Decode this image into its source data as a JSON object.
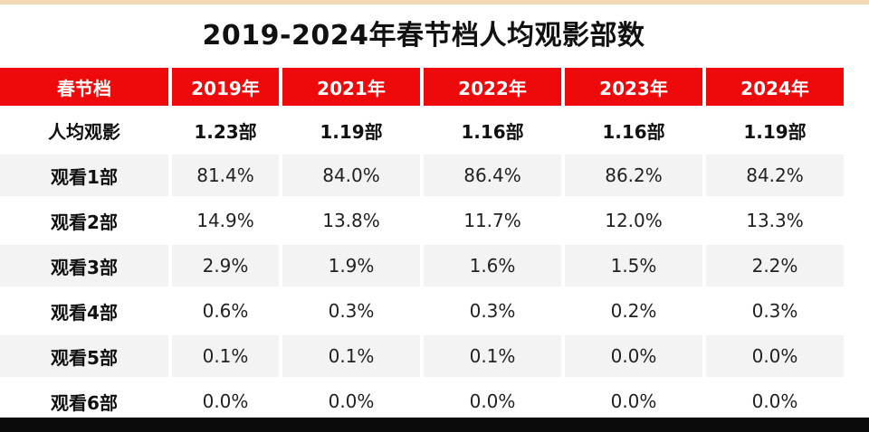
{
  "title": "2019-2024年春节档人均观影部数",
  "chart_data": {
    "type": "table",
    "title": "2019-2024年春节档人均观影部数",
    "columns": [
      "春节档",
      "2019年",
      "2021年",
      "2022年",
      "2023年",
      "2024年"
    ],
    "rows": [
      {
        "label": "人均观影",
        "values": [
          "1.23部",
          "1.19部",
          "1.16部",
          "1.16部",
          "1.19部"
        ]
      },
      {
        "label": "观看1部",
        "values": [
          "81.4%",
          "84.0%",
          "86.4%",
          "86.2%",
          "84.2%"
        ]
      },
      {
        "label": "观看2部",
        "values": [
          "14.9%",
          "13.8%",
          "11.7%",
          "12.0%",
          "13.3%"
        ]
      },
      {
        "label": "观看3部",
        "values": [
          "2.9%",
          "1.9%",
          "1.6%",
          "1.5%",
          "2.2%"
        ]
      },
      {
        "label": "观看4部",
        "values": [
          "0.6%",
          "0.3%",
          "0.3%",
          "0.2%",
          "0.3%"
        ]
      },
      {
        "label": "观看5部",
        "values": [
          "0.1%",
          "0.1%",
          "0.1%",
          "0.0%",
          "0.0%"
        ]
      },
      {
        "label": "观看6部",
        "values": [
          "0.0%",
          "0.0%",
          "0.0%",
          "0.0%",
          "0.0%"
        ]
      }
    ]
  },
  "colors": {
    "header_bg": "#ee0a0a",
    "header_text": "#ffffff",
    "stripe": "#f3f3f3"
  }
}
